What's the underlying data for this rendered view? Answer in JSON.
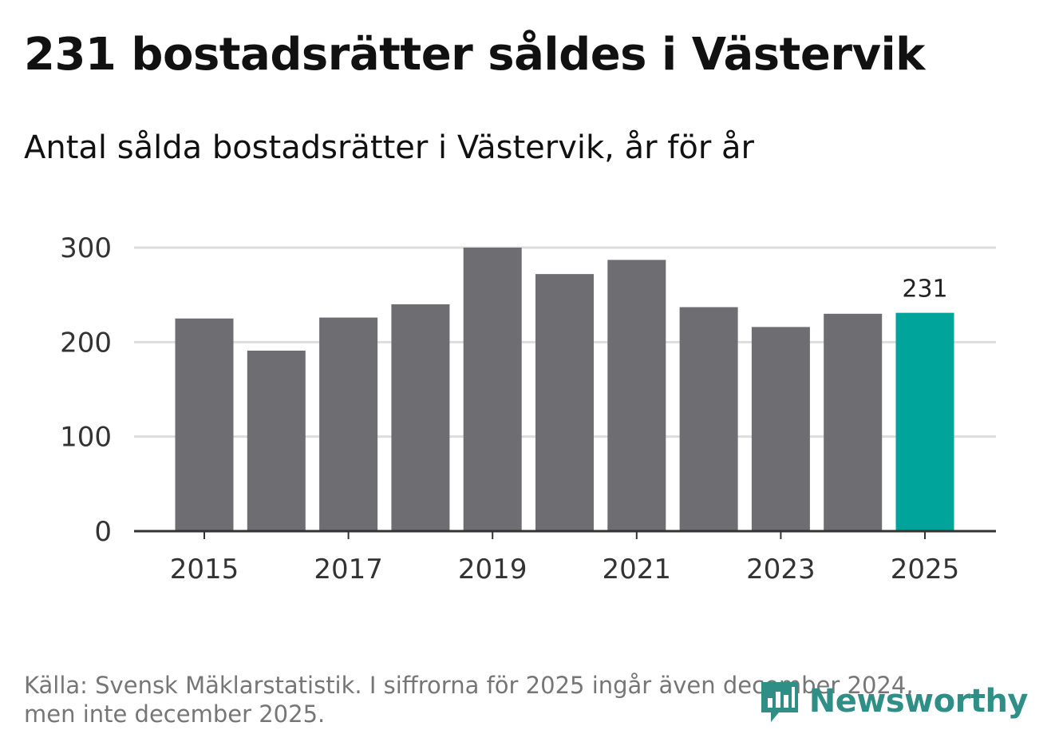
{
  "title": "231 bostadsrätter såldes i Västervik",
  "subtitle": "Antal sålda bostadsrätter i Västervik, år för år",
  "chart_data": {
    "type": "bar",
    "categories": [
      "2015",
      "2016",
      "2017",
      "2018",
      "2019",
      "2020",
      "2021",
      "2022",
      "2023",
      "2024",
      "2025"
    ],
    "values": [
      225,
      191,
      226,
      240,
      300,
      272,
      287,
      237,
      216,
      230,
      231
    ],
    "x_tick_labels": [
      "2015",
      "2017",
      "2019",
      "2021",
      "2023",
      "2025"
    ],
    "y_ticks": [
      0,
      100,
      200,
      300
    ],
    "ylim": [
      0,
      300
    ],
    "highlight": {
      "category": "2025",
      "label": "231"
    },
    "bar_color": "#6e6d72",
    "highlight_color": "#00a49a",
    "grid": true,
    "title": "231 bostadsrätter såldes i Västervik",
    "xlabel": "",
    "ylabel": ""
  },
  "footer": {
    "line1": "Källa: Svensk Mäklarstatistik. I siffrorna för 2025 ingår även december 2024,",
    "line2": "men inte december 2025."
  },
  "brand": {
    "name": "Newsworthy",
    "icon": "bar-chart-speech-bubble-icon",
    "color": "#2f8f86"
  }
}
